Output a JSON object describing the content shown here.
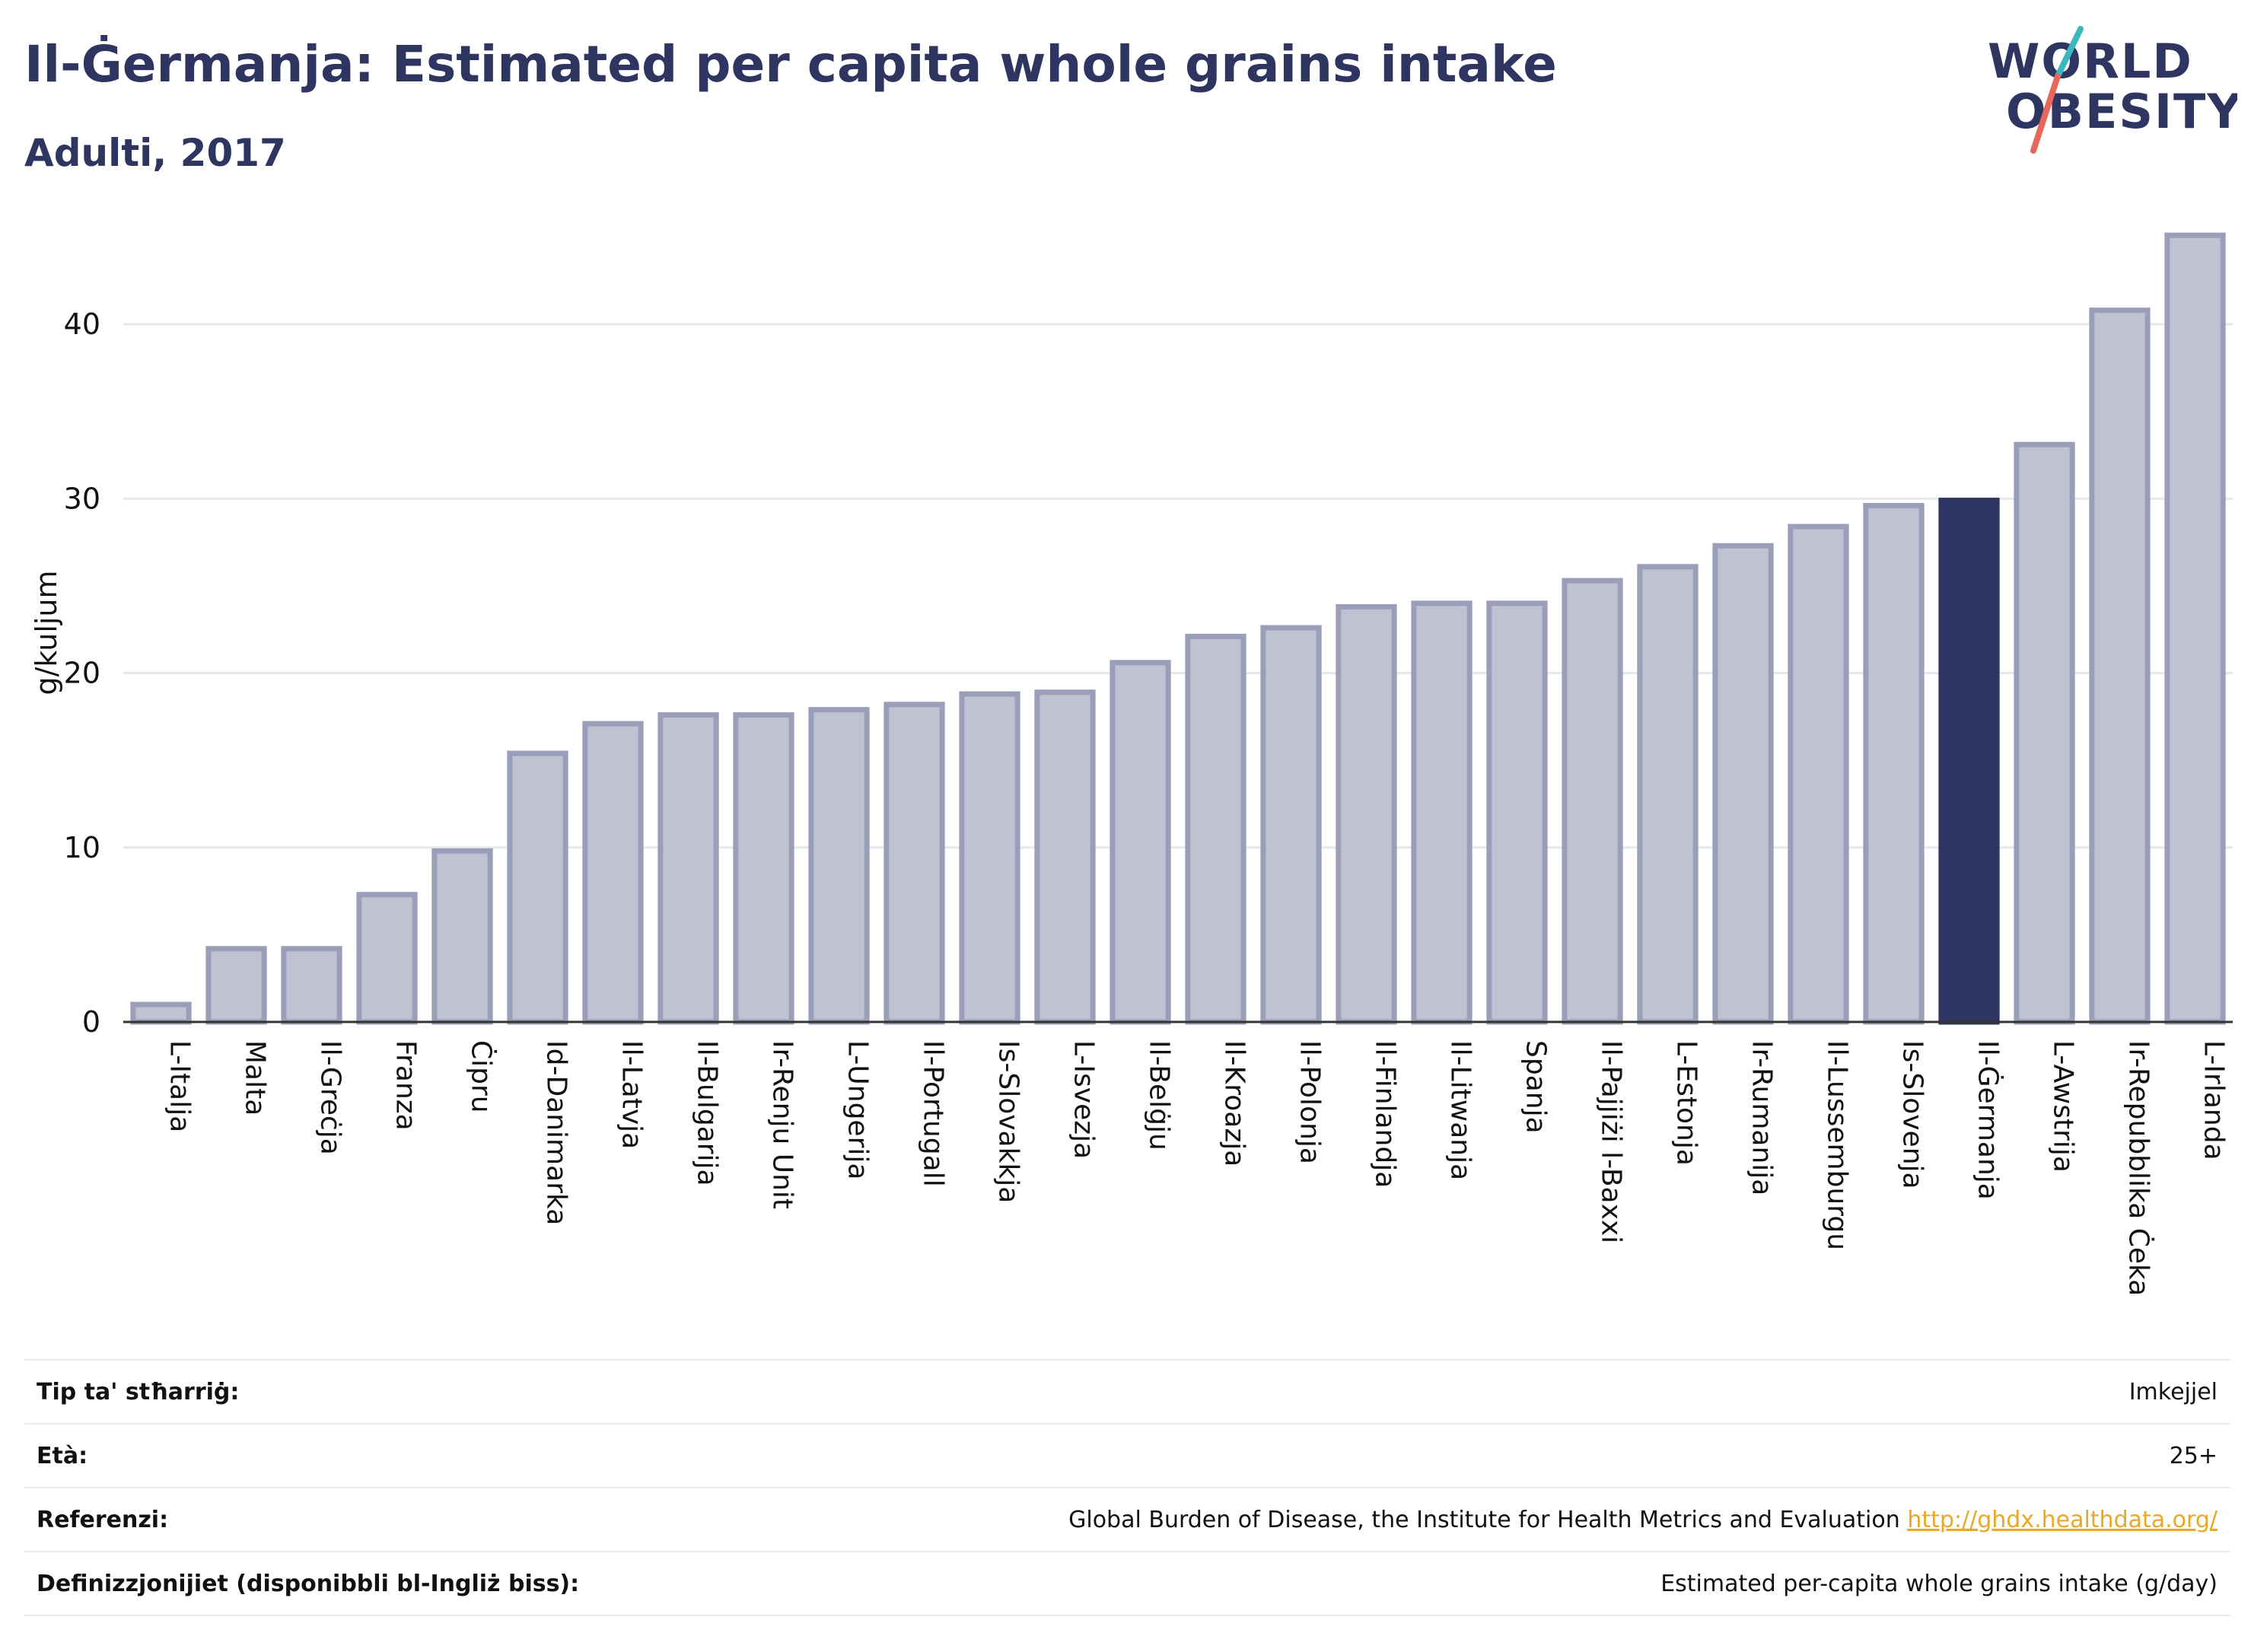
{
  "title": "Il-Ġermanja: Estimated per capita whole grains intake",
  "subtitle": "Adulti, 2017",
  "logo": {
    "line1": "WORLD",
    "line2": "OBESITY"
  },
  "colors": {
    "bar": "#bfc2d0",
    "bar_border": "#9a9eb8",
    "highlight": "#2d3560",
    "text": "#2d3560",
    "grid": "#e6e8ec",
    "link": "#e9a825",
    "logo_slash_teal": "#3ab7bf",
    "logo_slash_red": "#e8665a"
  },
  "chart_data": {
    "type": "bar",
    "ylabel": "g/kuljum",
    "xlabel": "",
    "ylim": [
      0,
      45.5
    ],
    "yticks": [
      0,
      10,
      20,
      30,
      40
    ],
    "grid": true,
    "highlight": "Il-Ġermanja",
    "categories": [
      "L-Italja",
      "Malta",
      "Il-Greċja",
      "Franza",
      "Ċipru",
      "Id-Danimarka",
      "Il-Latvja",
      "Il-Bulgarija",
      "Ir-Renju Unit",
      "L-Ungerija",
      "Il-Portugall",
      "Is-Slovakkja",
      "L-Isvezja",
      "Il-Belġju",
      "Il-Kroazja",
      "Il-Polonja",
      "Il-Finlandja",
      "Il-Litwanja",
      "Spanja",
      "Il-Pajjiżi l-Baxxi",
      "L-Estonja",
      "Ir-Rumanija",
      "Il-Lussemburgu",
      "Is-Slovenja",
      "Il-Ġermanja",
      "L-Awstrija",
      "Ir-Repubblika Ċeka",
      "L-Irlanda"
    ],
    "values": [
      1.0,
      4.2,
      4.2,
      7.3,
      9.8,
      15.4,
      17.1,
      17.6,
      17.6,
      17.9,
      18.2,
      18.8,
      18.9,
      20.6,
      22.1,
      22.6,
      23.8,
      24.0,
      24.0,
      25.3,
      26.1,
      27.3,
      28.4,
      29.6,
      29.9,
      33.1,
      40.8,
      45.1
    ]
  },
  "info": {
    "rows": [
      {
        "key": "Tip ta' stħarriġ:",
        "value": "Imkejjel"
      },
      {
        "key": "Età:",
        "value": "25+"
      },
      {
        "key": "Referenzi:",
        "value": "Global Burden of Disease, the Institute for Health Metrics and Evaluation",
        "link": "http://ghdx.healthdata.org/"
      },
      {
        "key": "Definizzjonijiet (disponibbli bl-Ingliż biss):",
        "value": "Estimated per-capita whole grains intake (g/day)"
      }
    ]
  }
}
